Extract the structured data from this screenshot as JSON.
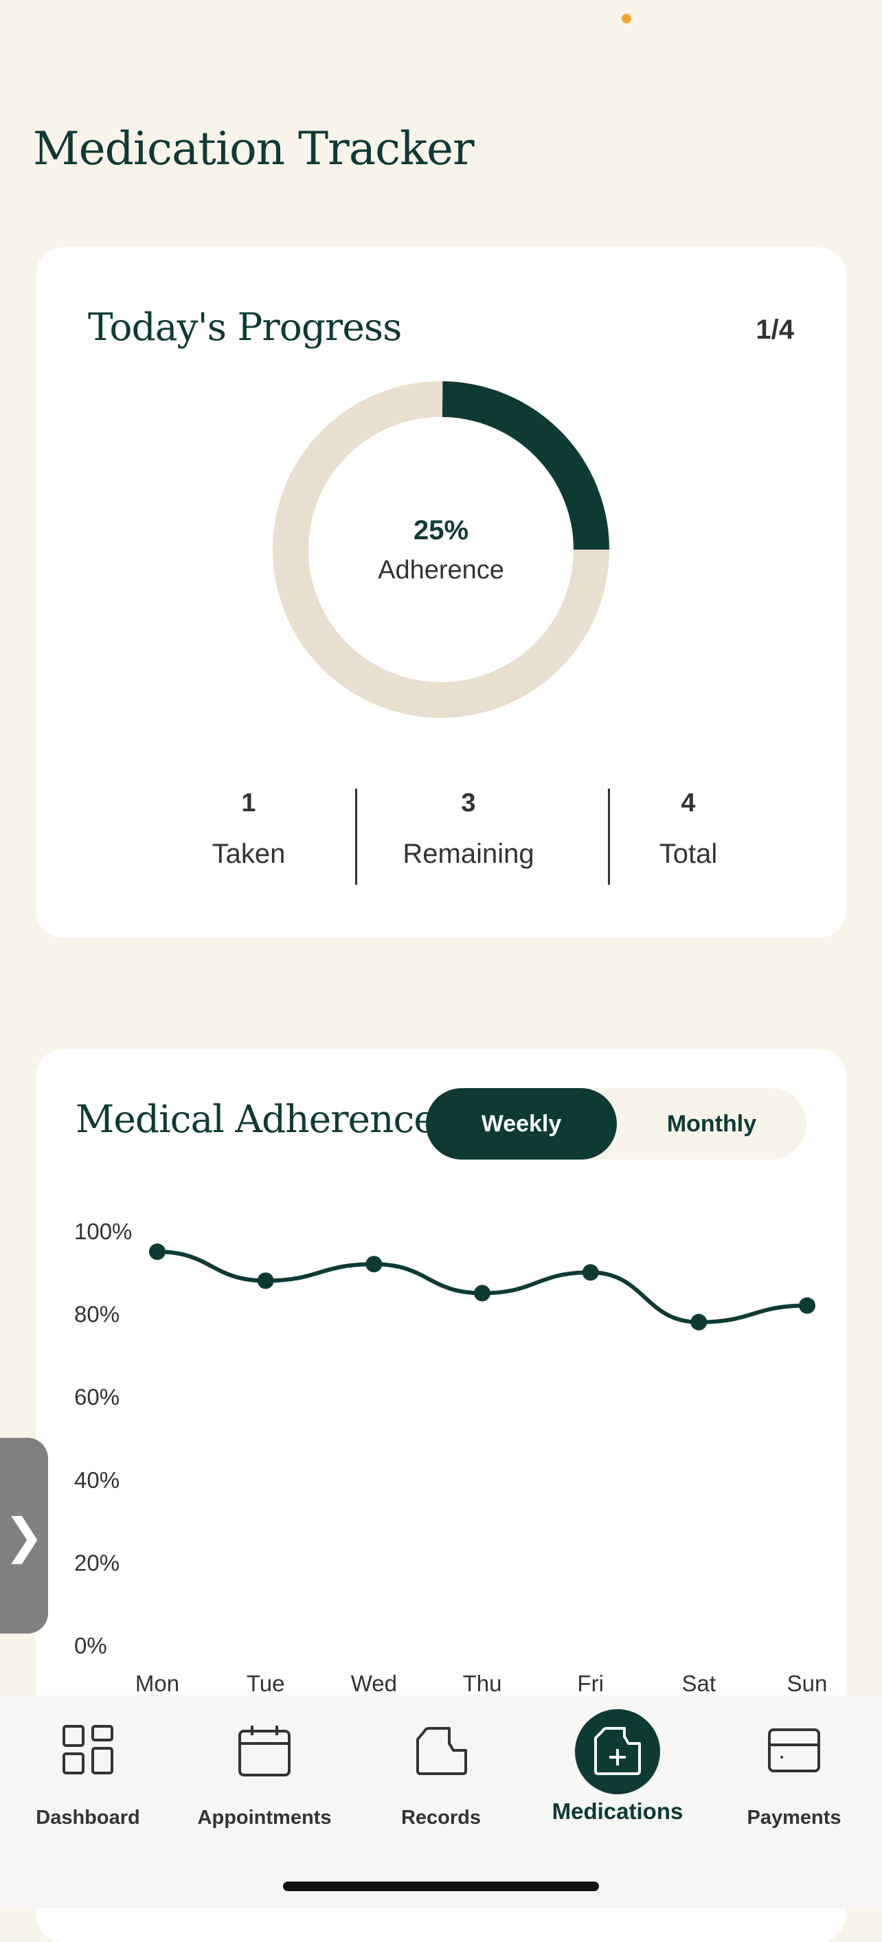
{
  "page": {
    "title": "Medication Tracker"
  },
  "progress": {
    "title": "Today's Progress",
    "count": "1/4",
    "percent_label": "25%",
    "percent_value": 0.25,
    "center_label": "Adherence",
    "stats": [
      {
        "value": "1",
        "label": "Taken"
      },
      {
        "value": "3",
        "label": "Remaining"
      },
      {
        "value": "4",
        "label": "Total"
      }
    ],
    "colors": {
      "filled": "#0d3b34",
      "track": "#e8dfcf"
    }
  },
  "adherence": {
    "title": "Medical Adherence",
    "toggle": {
      "weekly": "Weekly",
      "monthly": "Monthly",
      "selected": "Weekly"
    }
  },
  "chart_data": {
    "type": "line",
    "categories": [
      "Mon",
      "Tue",
      "Wed",
      "Thu",
      "Fri",
      "Sat",
      "Sun"
    ],
    "y_tick_labels": [
      "100%",
      "80%",
      "60%",
      "40%",
      "20%",
      "0%"
    ],
    "ylim": [
      0,
      100
    ],
    "series": [
      {
        "values": [
          95,
          88,
          92,
          85,
          90,
          78,
          82
        ],
        "color": "#0d3b34"
      }
    ],
    "title": "",
    "xlabel": "",
    "ylabel": "",
    "grid": false
  },
  "side_handle": {
    "glyph": "❯"
  },
  "nav": {
    "items": [
      {
        "label": "Dashboard",
        "icon": "grid-icon"
      },
      {
        "label": "Appointments",
        "icon": "calendar-icon"
      },
      {
        "label": "Records",
        "icon": "folder-icon"
      },
      {
        "label": "Medications",
        "icon": "folder-plus-icon",
        "active": true
      },
      {
        "label": "Payments",
        "icon": "card-icon"
      }
    ]
  }
}
